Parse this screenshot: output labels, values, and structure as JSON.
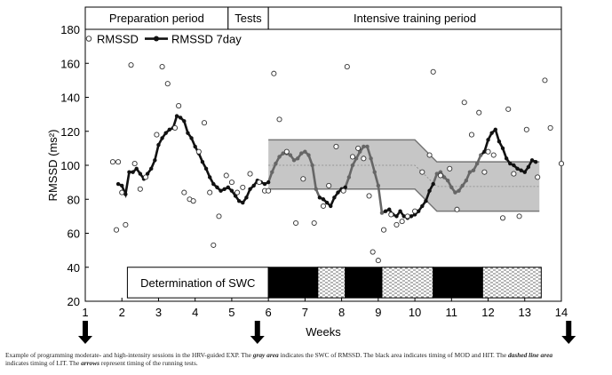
{
  "chart_data": {
    "type": "line",
    "xlabel": "Weeks",
    "ylabel": "RMSSD (ms²)",
    "xlim": [
      1,
      14
    ],
    "ylim": [
      20,
      180
    ],
    "x_ticks": [
      1,
      2,
      3,
      4,
      5,
      6,
      7,
      8,
      9,
      10,
      11,
      12,
      13,
      14
    ],
    "y_ticks": [
      20,
      40,
      60,
      80,
      100,
      120,
      140,
      160,
      180
    ],
    "grid": false,
    "legend": "top-left",
    "colors": {
      "swc_band": "#c6c6c6",
      "swc_border": "#777777",
      "line_dark": "#111111",
      "line_gray": "#666666",
      "block_black": "#000000"
    },
    "periods": [
      {
        "label": "Preparation period",
        "start": 1.0,
        "end": 4.9
      },
      {
        "label": "Tests",
        "start": 4.9,
        "end": 6.0
      },
      {
        "label": "Intensive training period",
        "start": 6.0,
        "end": 14.0
      }
    ],
    "swc_band": {
      "name": "SWC of RMSSD",
      "upper": [
        [
          6.0,
          115
        ],
        [
          10.0,
          115
        ],
        [
          10.6,
          102
        ],
        [
          13.4,
          102
        ]
      ],
      "lower": [
        [
          6.0,
          86
        ],
        [
          10.0,
          86
        ],
        [
          10.6,
          73
        ],
        [
          13.4,
          73
        ]
      ],
      "mid": [
        [
          6.0,
          100
        ],
        [
          10.0,
          100
        ],
        [
          10.6,
          87.5
        ],
        [
          13.4,
          87.5
        ]
      ]
    },
    "swc_label": "Determination of SWC",
    "blocks": [
      {
        "type": "white",
        "start": 2.15,
        "end": 6.0
      },
      {
        "type": "black",
        "start": 6.0,
        "end": 7.35
      },
      {
        "type": "dashed",
        "start": 7.35,
        "end": 8.1
      },
      {
        "type": "black",
        "start": 8.1,
        "end": 9.1
      },
      {
        "type": "dashed",
        "start": 9.1,
        "end": 10.5
      },
      {
        "type": "black",
        "start": 10.5,
        "end": 11.85
      },
      {
        "type": "dashed",
        "start": 11.85,
        "end": 13.45
      }
    ],
    "running_tests": [
      1.0,
      5.7,
      14.2
    ],
    "series": [
      {
        "name": "RMSSD",
        "style": "open-circle",
        "points": [
          [
            1.75,
            102
          ],
          [
            1.9,
            102
          ],
          [
            1.85,
            62
          ],
          [
            2.0,
            84
          ],
          [
            2.1,
            65
          ],
          [
            2.25,
            159
          ],
          [
            2.35,
            101
          ],
          [
            2.5,
            86
          ],
          [
            2.65,
            93
          ],
          [
            2.95,
            118
          ],
          [
            3.1,
            158
          ],
          [
            3.25,
            148
          ],
          [
            3.45,
            122
          ],
          [
            3.55,
            135
          ],
          [
            3.7,
            84
          ],
          [
            3.85,
            80
          ],
          [
            3.95,
            79
          ],
          [
            4.1,
            108
          ],
          [
            4.25,
            125
          ],
          [
            4.4,
            84
          ],
          [
            4.5,
            53
          ],
          [
            4.65,
            70
          ],
          [
            4.85,
            94
          ],
          [
            5.0,
            90
          ],
          [
            5.15,
            84
          ],
          [
            5.3,
            87
          ],
          [
            5.5,
            95
          ],
          [
            5.75,
            90
          ],
          [
            5.9,
            85
          ],
          [
            6.0,
            85
          ],
          [
            6.15,
            154
          ],
          [
            6.3,
            127
          ],
          [
            6.5,
            108
          ],
          [
            6.75,
            66
          ],
          [
            6.95,
            92
          ],
          [
            7.25,
            66
          ],
          [
            7.5,
            76
          ],
          [
            7.65,
            88
          ],
          [
            7.85,
            111
          ],
          [
            8.05,
            85
          ],
          [
            8.15,
            158
          ],
          [
            8.3,
            105
          ],
          [
            8.45,
            110
          ],
          [
            8.6,
            104
          ],
          [
            8.75,
            82
          ],
          [
            8.85,
            49
          ],
          [
            9.0,
            44
          ],
          [
            9.15,
            62
          ],
          [
            9.35,
            71
          ],
          [
            9.5,
            65
          ],
          [
            9.65,
            67
          ],
          [
            9.8,
            70
          ],
          [
            10.0,
            73
          ],
          [
            10.2,
            96
          ],
          [
            10.4,
            106
          ],
          [
            10.5,
            155
          ],
          [
            10.7,
            94
          ],
          [
            10.95,
            98
          ],
          [
            11.15,
            74
          ],
          [
            11.35,
            137
          ],
          [
            11.55,
            118
          ],
          [
            11.75,
            131
          ],
          [
            11.9,
            96
          ],
          [
            12.0,
            108
          ],
          [
            12.15,
            106
          ],
          [
            12.4,
            69
          ],
          [
            12.55,
            133
          ],
          [
            12.7,
            95
          ],
          [
            12.85,
            70
          ],
          [
            13.05,
            121
          ],
          [
            13.35,
            93
          ],
          [
            13.55,
            150
          ],
          [
            13.7,
            122
          ],
          [
            14.0,
            101
          ]
        ]
      },
      {
        "name": "RMSSD 7day",
        "style": "line-with-dots",
        "points": [
          [
            1.9,
            89
          ],
          [
            2.0,
            88
          ],
          [
            2.1,
            83
          ],
          [
            2.2,
            96
          ],
          [
            2.3,
            96
          ],
          [
            2.4,
            98
          ],
          [
            2.5,
            95
          ],
          [
            2.6,
            92
          ],
          [
            2.7,
            95
          ],
          [
            2.8,
            98
          ],
          [
            2.9,
            103
          ],
          [
            3.0,
            112
          ],
          [
            3.1,
            116
          ],
          [
            3.2,
            119
          ],
          [
            3.3,
            121
          ],
          [
            3.4,
            122
          ],
          [
            3.5,
            129
          ],
          [
            3.6,
            128
          ],
          [
            3.7,
            126
          ],
          [
            3.8,
            119
          ],
          [
            3.9,
            116
          ],
          [
            4.0,
            111
          ],
          [
            4.1,
            107
          ],
          [
            4.2,
            102
          ],
          [
            4.3,
            98
          ],
          [
            4.4,
            93
          ],
          [
            4.5,
            89
          ],
          [
            4.6,
            87
          ],
          [
            4.7,
            85
          ],
          [
            4.8,
            86
          ],
          [
            4.9,
            87
          ],
          [
            5.0,
            85
          ],
          [
            5.1,
            82
          ],
          [
            5.2,
            79
          ],
          [
            5.3,
            78
          ],
          [
            5.4,
            81
          ],
          [
            5.5,
            86
          ],
          [
            5.6,
            88
          ],
          [
            5.7,
            91
          ],
          [
            5.8,
            90
          ],
          [
            5.9,
            89
          ],
          [
            6.0,
            90
          ],
          [
            6.1,
            96
          ],
          [
            6.2,
            101
          ],
          [
            6.3,
            105
          ],
          [
            6.4,
            107
          ],
          [
            6.5,
            107
          ],
          [
            6.6,
            106
          ],
          [
            6.7,
            103
          ],
          [
            6.8,
            104
          ],
          [
            6.9,
            107
          ],
          [
            7.0,
            108
          ],
          [
            7.1,
            106
          ],
          [
            7.2,
            100
          ],
          [
            7.3,
            86
          ],
          [
            7.4,
            81
          ],
          [
            7.5,
            80
          ],
          [
            7.6,
            78
          ],
          [
            7.7,
            76
          ],
          [
            7.8,
            81
          ],
          [
            7.9,
            84
          ],
          [
            8.0,
            86
          ],
          [
            8.1,
            87
          ],
          [
            8.2,
            93
          ],
          [
            8.3,
            100
          ],
          [
            8.4,
            104
          ],
          [
            8.5,
            108
          ],
          [
            8.6,
            111
          ],
          [
            8.7,
            111
          ],
          [
            8.8,
            104
          ],
          [
            8.9,
            96
          ],
          [
            9.0,
            88
          ],
          [
            9.1,
            72
          ],
          [
            9.2,
            73
          ],
          [
            9.3,
            74
          ],
          [
            9.4,
            71
          ],
          [
            9.5,
            70
          ],
          [
            9.6,
            73
          ],
          [
            9.7,
            70
          ],
          [
            9.8,
            69
          ],
          [
            9.9,
            70
          ],
          [
            10.0,
            71
          ],
          [
            10.1,
            73
          ],
          [
            10.2,
            76
          ],
          [
            10.3,
            79
          ],
          [
            10.4,
            85
          ],
          [
            10.5,
            89
          ],
          [
            10.6,
            95
          ],
          [
            10.7,
            96
          ],
          [
            10.8,
            93
          ],
          [
            10.9,
            91
          ],
          [
            11.0,
            87
          ],
          [
            11.1,
            84
          ],
          [
            11.2,
            85
          ],
          [
            11.3,
            88
          ],
          [
            11.4,
            91
          ],
          [
            11.5,
            96
          ],
          [
            11.6,
            97
          ],
          [
            11.7,
            101
          ],
          [
            11.8,
            106
          ],
          [
            11.9,
            108
          ],
          [
            12.0,
            115
          ],
          [
            12.1,
            119
          ],
          [
            12.2,
            121
          ],
          [
            12.3,
            114
          ],
          [
            12.4,
            110
          ],
          [
            12.5,
            104
          ],
          [
            12.6,
            101
          ],
          [
            12.7,
            100
          ],
          [
            12.8,
            98
          ],
          [
            12.9,
            97
          ],
          [
            13.0,
            96
          ],
          [
            13.1,
            99
          ],
          [
            13.2,
            103
          ],
          [
            13.3,
            102
          ]
        ]
      }
    ]
  },
  "caption": {
    "line1_a": "Example of programming moderate- and high-intensity sessions in the HRV-guided EXP. The ",
    "line1_b": "gray area",
    "line1_c": " indicates the SWC of RMSSD. The black area indicates timing of MOD and HIT. The ",
    "line1_d": "dashed line area",
    "line2_a": "indicates timing of LIT. The ",
    "line2_b": "arrows",
    "line2_c": " represent timing of the running tests."
  }
}
